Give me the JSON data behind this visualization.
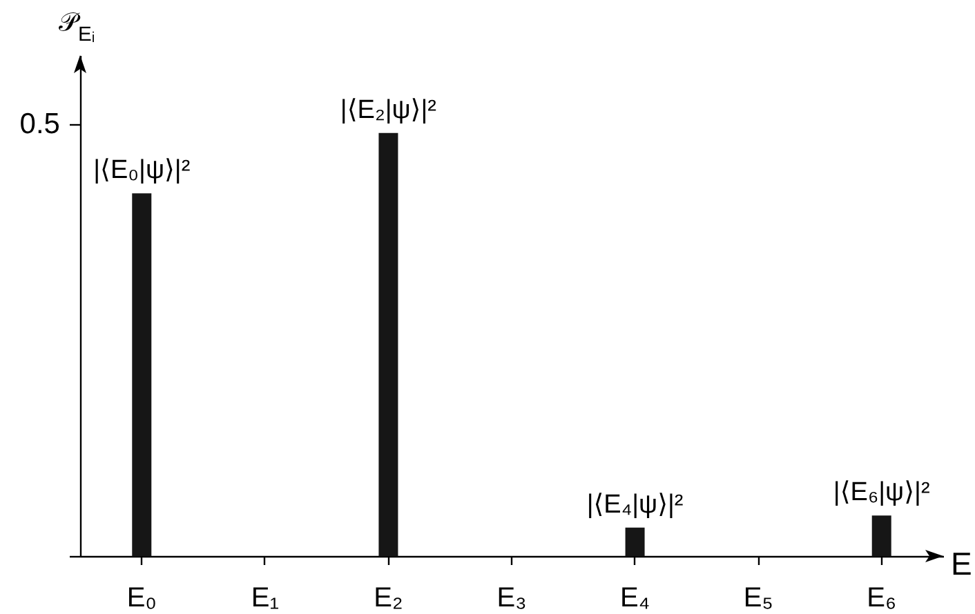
{
  "chart_data": {
    "type": "bar",
    "categories": [
      "E₀",
      "E₁",
      "E₂",
      "E₃",
      "E₄",
      "E₅",
      "E₆"
    ],
    "values": [
      0.42,
      null,
      0.49,
      null,
      0.033,
      null,
      0.047
    ],
    "color": "#161616",
    "value_labels": [
      "|⟨E₀|ψ⟩|²",
      null,
      "|⟨E₂|ψ⟩|²",
      null,
      "|⟨E₄|ψ⟩|²",
      null,
      "|⟨E₆|ψ⟩|²"
    ],
    "xlabel": "E",
    "ylabel": "𝒫$_{Eᵢ}$",
    "ylim": [
      0,
      0.58
    ],
    "yticks": [
      {
        "value": 0,
        "label": null
      },
      0.5
    ]
  }
}
